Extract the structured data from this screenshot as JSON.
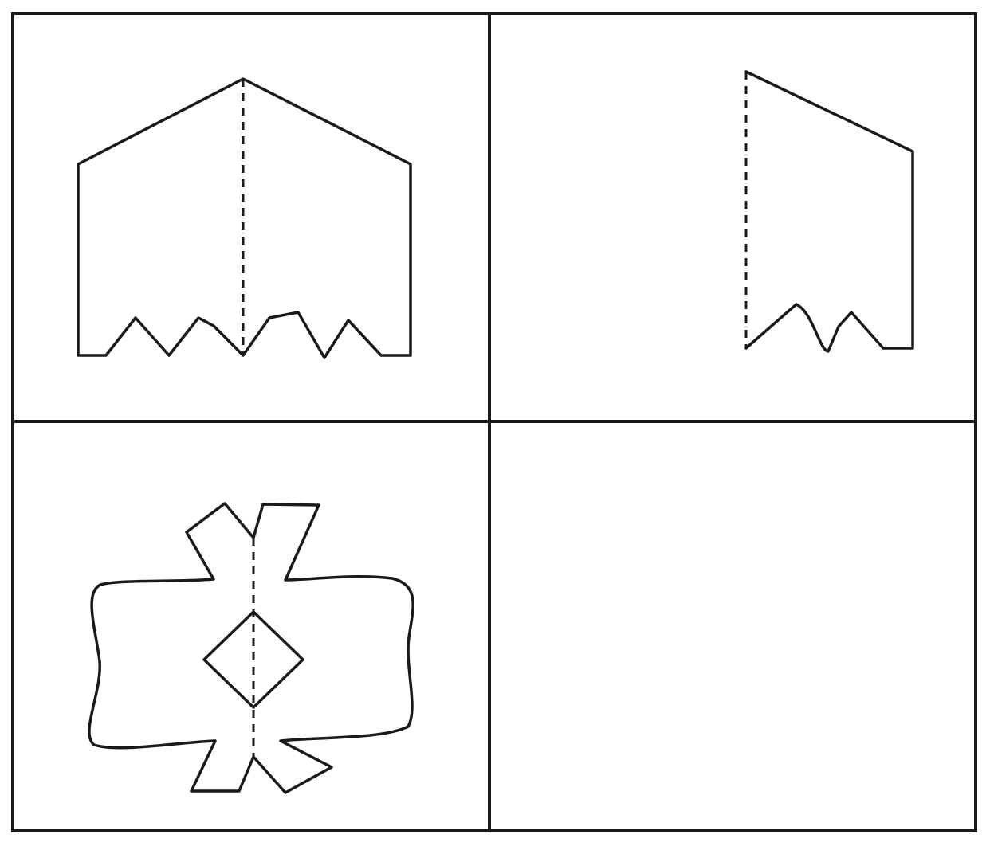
{
  "figure": {
    "panels": [
      {
        "id": "top-left",
        "content": "full-shape-with-fold"
      },
      {
        "id": "top-right",
        "content": "half-shape-on-fold"
      },
      {
        "id": "bottom-left",
        "content": "symmetric-shape-with-fold"
      },
      {
        "id": "bottom-right",
        "content": "empty"
      }
    ]
  },
  "colors": {
    "line": "#1a1a1a",
    "background": "#ffffff"
  }
}
